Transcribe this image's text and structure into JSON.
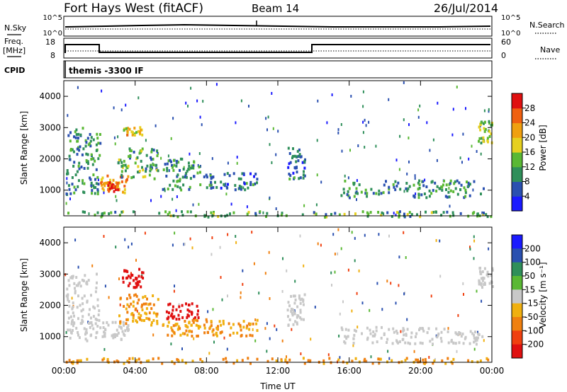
{
  "header": {
    "title": "Fort Hays West (fitACF)",
    "beam": "Beam 14",
    "date": "26/Jul/2014"
  },
  "strip": {
    "nsky_label": "N.Sky",
    "nsky_tick_top": "10^5",
    "nsky_tick_bottom": "10^0",
    "nsearch_label": "N.Search",
    "freq_label": "Freq.",
    "freq_unit": "[MHz]",
    "freq_ticks": [
      "18",
      "8"
    ],
    "nave_ticks": [
      "60",
      "0"
    ],
    "nave_label": "Nave",
    "cpid_label": "CPID",
    "cpid_text": "themis -3300 IF"
  },
  "colors": {
    "power": [
      "#1a1aff",
      "#2a50b0",
      "#2f8f5a",
      "#5ab834",
      "#e6d020",
      "#f0a010",
      "#f06010",
      "#e01010"
    ],
    "velocity": [
      "#1a1aff",
      "#2a50b0",
      "#2f8f5a",
      "#5ab834",
      "#c8c8c8",
      "#f0b010",
      "#f08010",
      "#f04010",
      "#e01010"
    ]
  },
  "chart_data": [
    {
      "type": "heatmap",
      "panel": "power",
      "ylabel": "Slant Range [km]",
      "ylim": [
        180,
        4500
      ],
      "yticks": [
        "1000",
        "2000",
        "3000",
        "4000"
      ],
      "colorbar_label": "Power [dB]",
      "colorbar_ticks": [
        "4",
        "8",
        "12",
        "16",
        "20",
        "24",
        "28"
      ],
      "regions": [
        {
          "t": [
            0.1,
            2.0
          ],
          "r": [
            900,
            3050
          ],
          "v": 10
        },
        {
          "t": [
            2.0,
            3.6
          ],
          "r": [
            950,
            1500
          ],
          "v": 22
        },
        {
          "t": [
            2.4,
            3.0
          ],
          "r": [
            1000,
            1300
          ],
          "v": 28
        },
        {
          "t": [
            3.0,
            5.3
          ],
          "r": [
            1400,
            2400
          ],
          "v": 12
        },
        {
          "t": [
            3.3,
            4.4
          ],
          "r": [
            2800,
            3050
          ],
          "v": 20
        },
        {
          "t": [
            5.5,
            7.6
          ],
          "r": [
            1050,
            2050
          ],
          "v": 10
        },
        {
          "t": [
            7.8,
            10.8
          ],
          "r": [
            1050,
            1600
          ],
          "v": 8
        },
        {
          "t": [
            12.5,
            13.5
          ],
          "r": [
            1400,
            2400
          ],
          "v": 8
        },
        {
          "t": [
            15.5,
            23.5
          ],
          "r": [
            800,
            1350
          ],
          "v": 10
        },
        {
          "t": [
            23.2,
            24.0
          ],
          "r": [
            2550,
            3250
          ],
          "v": 14
        },
        {
          "t": [
            0.0,
            24.0
          ],
          "r": [
            180,
            360
          ],
          "v": 12
        }
      ]
    },
    {
      "type": "heatmap",
      "panel": "velocity",
      "ylabel": "Slant Range [km]",
      "ylim": [
        180,
        4500
      ],
      "yticks": [
        "1000",
        "2000",
        "3000",
        "4000"
      ],
      "xlabel": "Time UT",
      "xlim": [
        0,
        24
      ],
      "xticks": [
        "00:00",
        "04:00",
        "08:00",
        "12:00",
        "16:00",
        "20:00",
        "00:00"
      ],
      "colorbar_label": "Velocity [m s⁻¹]",
      "colorbar_ticks": [
        "200",
        "100",
        "50",
        "15",
        "-15",
        "-50",
        "-100",
        "-200"
      ],
      "regions": [
        {
          "t": [
            0.1,
            2.0
          ],
          "r": [
            900,
            3050
          ],
          "v": 0
        },
        {
          "t": [
            2.0,
            3.6
          ],
          "r": [
            950,
            1500
          ],
          "v": 0
        },
        {
          "t": [
            3.2,
            4.4
          ],
          "r": [
            2600,
            3200
          ],
          "v": -200
        },
        {
          "t": [
            3.0,
            5.3
          ],
          "r": [
            1400,
            2400
          ],
          "v": -50
        },
        {
          "t": [
            5.7,
            7.5
          ],
          "r": [
            1600,
            2100
          ],
          "v": -200
        },
        {
          "t": [
            5.5,
            7.6
          ],
          "r": [
            1050,
            1600
          ],
          "v": -50
        },
        {
          "t": [
            7.8,
            10.8
          ],
          "r": [
            1050,
            1600
          ],
          "v": -50
        },
        {
          "t": [
            12.5,
            13.5
          ],
          "r": [
            1400,
            2400
          ],
          "v": 0
        },
        {
          "t": [
            15.5,
            23.5
          ],
          "r": [
            800,
            1350
          ],
          "v": 0
        },
        {
          "t": [
            23.2,
            24.0
          ],
          "r": [
            2550,
            3250
          ],
          "v": 0
        },
        {
          "t": [
            0.0,
            24.0
          ],
          "r": [
            180,
            360
          ],
          "v": -60
        }
      ]
    }
  ]
}
